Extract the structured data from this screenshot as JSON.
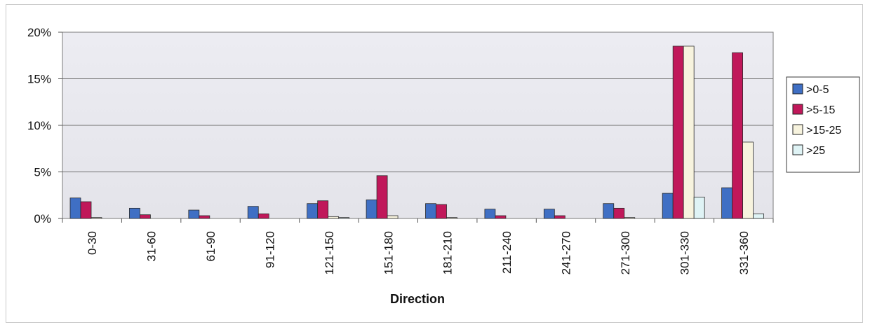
{
  "chart_data": {
    "type": "bar",
    "title": "",
    "xlabel": "Direction",
    "ylabel": "",
    "ylim": [
      0,
      20
    ],
    "ytick_values": [
      0,
      5,
      10,
      15,
      20
    ],
    "ytick_labels": [
      "0%",
      "5%",
      "10%",
      "15%",
      "20%"
    ],
    "grid": true,
    "legend_position": "right",
    "categories": [
      "0-30",
      "31-60",
      "61-90",
      "91-120",
      "121-150",
      "151-180",
      "181-210",
      "211-240",
      "241-270",
      "271-300",
      "301-330",
      "331-360"
    ],
    "series": [
      {
        "name": ">0-5",
        "color": "#3f6fc4",
        "values": [
          2.2,
          1.1,
          0.9,
          1.3,
          1.6,
          2.0,
          1.6,
          1.0,
          1.0,
          1.6,
          2.7,
          3.3
        ]
      },
      {
        "name": ">5-15",
        "color": "#c0185a",
        "values": [
          1.8,
          0.4,
          0.3,
          0.5,
          1.9,
          4.6,
          1.5,
          0.3,
          0.3,
          1.1,
          18.5,
          17.8
        ]
      },
      {
        "name": ">15-25",
        "color": "#f7f3de",
        "values": [
          0.1,
          0.0,
          0.0,
          0.0,
          0.2,
          0.3,
          0.1,
          0.0,
          0.0,
          0.1,
          18.5,
          8.2
        ]
      },
      {
        "name": ">25",
        "color": "#dff3f5",
        "values": [
          0.0,
          0.0,
          0.0,
          0.0,
          0.1,
          0.0,
          0.0,
          0.0,
          0.0,
          0.0,
          2.3,
          0.5
        ]
      }
    ]
  }
}
